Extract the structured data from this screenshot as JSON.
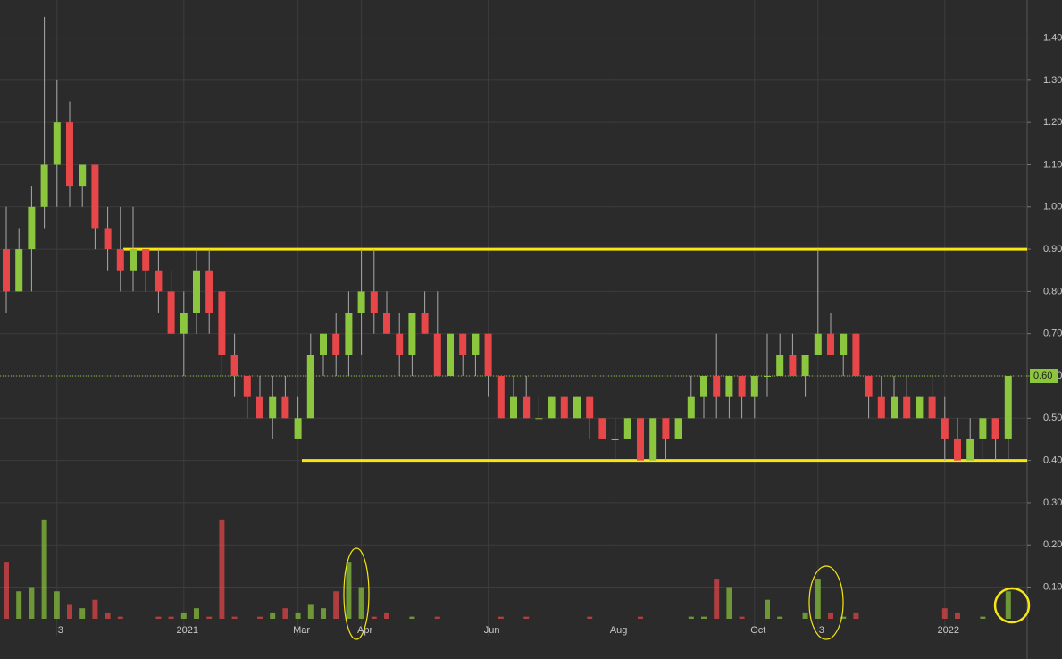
{
  "chart_data": {
    "type": "candlestick",
    "categories": [
      null,
      null,
      null,
      null,
      "3",
      null,
      null,
      null,
      null,
      null,
      null,
      null,
      null,
      null,
      "2021",
      null,
      null,
      null,
      null,
      null,
      null,
      null,
      null,
      "Mar",
      null,
      null,
      null,
      null,
      "Apr",
      null,
      null,
      null,
      null,
      null,
      null,
      null,
      null,
      null,
      "Jun",
      null,
      null,
      null,
      null,
      null,
      null,
      null,
      null,
      null,
      "Aug",
      null,
      null,
      null,
      null,
      null,
      null,
      null,
      null,
      null,
      null,
      "Oct",
      null,
      null,
      null,
      null,
      "3",
      null,
      null,
      null,
      null,
      null,
      null,
      null,
      null,
      null,
      "2022",
      null,
      null,
      null,
      null,
      null
    ],
    "open": [
      0.9,
      0.8,
      0.9,
      1.0,
      1.1,
      1.2,
      1.05,
      1.1,
      0.95,
      0.9,
      0.85,
      0.9,
      0.85,
      0.8,
      0.7,
      0.75,
      0.85,
      0.8,
      0.65,
      0.6,
      0.55,
      0.5,
      0.55,
      0.45,
      0.5,
      0.65,
      0.7,
      0.65,
      0.75,
      0.8,
      0.75,
      0.7,
      0.65,
      0.75,
      0.7,
      0.6,
      0.7,
      0.65,
      0.7,
      0.6,
      0.5,
      0.55,
      0.5,
      0.5,
      0.55,
      0.5,
      0.55,
      0.5,
      0.45,
      0.45,
      0.5,
      0.4,
      0.5,
      0.45,
      0.5,
      0.55,
      0.6,
      0.55,
      0.6,
      0.55,
      0.6,
      0.6,
      0.65,
      0.6,
      0.65,
      0.7,
      0.65,
      0.7,
      0.6,
      0.55,
      0.5,
      0.55,
      0.5,
      0.55,
      0.5,
      0.45,
      0.4,
      0.45,
      0.5,
      0.45
    ],
    "high": [
      1.0,
      0.95,
      1.05,
      1.45,
      1.3,
      1.25,
      1.1,
      1.1,
      1.0,
      1.0,
      1.0,
      0.9,
      0.9,
      0.85,
      0.8,
      0.9,
      0.9,
      0.8,
      0.7,
      0.6,
      0.6,
      0.6,
      0.6,
      0.55,
      0.7,
      0.7,
      0.75,
      0.8,
      0.9,
      0.9,
      0.8,
      0.75,
      0.75,
      0.8,
      0.8,
      0.7,
      0.7,
      0.7,
      0.7,
      0.6,
      0.6,
      0.6,
      0.55,
      0.55,
      0.55,
      0.55,
      0.55,
      0.5,
      0.5,
      0.5,
      0.5,
      0.5,
      0.5,
      0.5,
      0.6,
      0.6,
      0.7,
      0.6,
      0.6,
      0.6,
      0.7,
      0.7,
      0.7,
      0.65,
      0.9,
      0.75,
      0.7,
      0.7,
      0.6,
      0.6,
      0.6,
      0.6,
      0.55,
      0.6,
      0.55,
      0.5,
      0.5,
      0.5,
      0.5,
      0.6
    ],
    "low": [
      0.75,
      0.8,
      0.8,
      0.95,
      1.0,
      1.0,
      1.0,
      0.9,
      0.85,
      0.8,
      0.8,
      0.8,
      0.75,
      0.7,
      0.6,
      0.7,
      0.7,
      0.6,
      0.55,
      0.5,
      0.5,
      0.45,
      0.5,
      0.45,
      0.5,
      0.6,
      0.6,
      0.6,
      0.65,
      0.7,
      0.7,
      0.6,
      0.6,
      0.7,
      0.6,
      0.6,
      0.6,
      0.6,
      0.55,
      0.5,
      0.5,
      0.5,
      0.5,
      0.5,
      0.5,
      0.5,
      0.45,
      0.45,
      0.4,
      0.45,
      0.4,
      0.4,
      0.4,
      0.45,
      0.5,
      0.5,
      0.5,
      0.5,
      0.5,
      0.5,
      0.55,
      0.6,
      0.6,
      0.55,
      0.65,
      0.65,
      0.6,
      0.6,
      0.5,
      0.5,
      0.5,
      0.5,
      0.5,
      0.5,
      0.4,
      0.4,
      0.4,
      0.4,
      0.4,
      0.4
    ],
    "close": [
      0.8,
      0.9,
      1.0,
      1.1,
      1.2,
      1.05,
      1.1,
      0.95,
      0.9,
      0.85,
      0.9,
      0.85,
      0.8,
      0.7,
      0.75,
      0.85,
      0.75,
      0.65,
      0.6,
      0.55,
      0.5,
      0.55,
      0.5,
      0.5,
      0.65,
      0.7,
      0.65,
      0.75,
      0.8,
      0.75,
      0.7,
      0.65,
      0.75,
      0.7,
      0.6,
      0.7,
      0.65,
      0.7,
      0.6,
      0.5,
      0.55,
      0.5,
      0.5,
      0.55,
      0.5,
      0.55,
      0.5,
      0.45,
      0.45,
      0.5,
      0.4,
      0.5,
      0.45,
      0.5,
      0.55,
      0.6,
      0.55,
      0.6,
      0.55,
      0.6,
      0.6,
      0.65,
      0.6,
      0.65,
      0.7,
      0.65,
      0.7,
      0.6,
      0.55,
      0.5,
      0.55,
      0.5,
      0.55,
      0.5,
      0.45,
      0.4,
      0.45,
      0.5,
      0.45,
      0.6
    ],
    "volume": [
      0.16,
      0.09,
      0.1,
      0.26,
      0.09,
      0.06,
      0.05,
      0.07,
      0.04,
      0.03,
      0.02,
      0.02,
      0.03,
      0.03,
      0.04,
      0.05,
      0.03,
      0.26,
      0.03,
      0.02,
      0.03,
      0.04,
      0.05,
      0.04,
      0.06,
      0.05,
      0.09,
      0.16,
      0.1,
      0.03,
      0.04,
      0.02,
      0.03,
      0.02,
      0.03,
      0.02,
      0.02,
      0.02,
      0.02,
      0.03,
      0.02,
      0.03,
      0.02,
      0.02,
      0.02,
      0.02,
      0.03,
      0.02,
      0.02,
      0.02,
      0.03,
      0.02,
      0.02,
      0.02,
      0.03,
      0.03,
      0.12,
      0.1,
      0.03,
      0.02,
      0.07,
      0.03,
      0.02,
      0.04,
      0.12,
      0.04,
      0.03,
      0.04,
      0.02,
      0.02,
      0.02,
      0.02,
      0.02,
      0.02,
      0.05,
      0.04,
      0.02,
      0.03,
      0.02,
      0.09
    ],
    "up_color": "#8cc63f",
    "down_color": "#e8474a",
    "level_color": "#f5e614",
    "levels": [
      0.9,
      0.4
    ],
    "last_price": {
      "value": 0.6,
      "label": "0.60"
    },
    "ylim": [
      0.025,
      1.49
    ],
    "yticks": [
      {
        "value": 0.1,
        "label": "0.10"
      },
      {
        "value": 0.2,
        "label": "0.20"
      },
      {
        "value": 0.3,
        "label": "0.30"
      },
      {
        "value": 0.4,
        "label": "0.40"
      },
      {
        "value": 0.5,
        "label": "0.50"
      },
      {
        "value": 0.6,
        "label": "0.60"
      },
      {
        "value": 0.7,
        "label": "0.70"
      },
      {
        "value": 0.8,
        "label": "0.80"
      },
      {
        "value": 0.9,
        "label": "0.90"
      },
      {
        "value": 1.0,
        "label": "1.00"
      },
      {
        "value": 1.1,
        "label": "1.10"
      },
      {
        "value": 1.2,
        "label": "1.20"
      },
      {
        "value": 1.3,
        "label": "1.30"
      },
      {
        "value": 1.4,
        "label": "1.40"
      }
    ],
    "grid": true
  }
}
